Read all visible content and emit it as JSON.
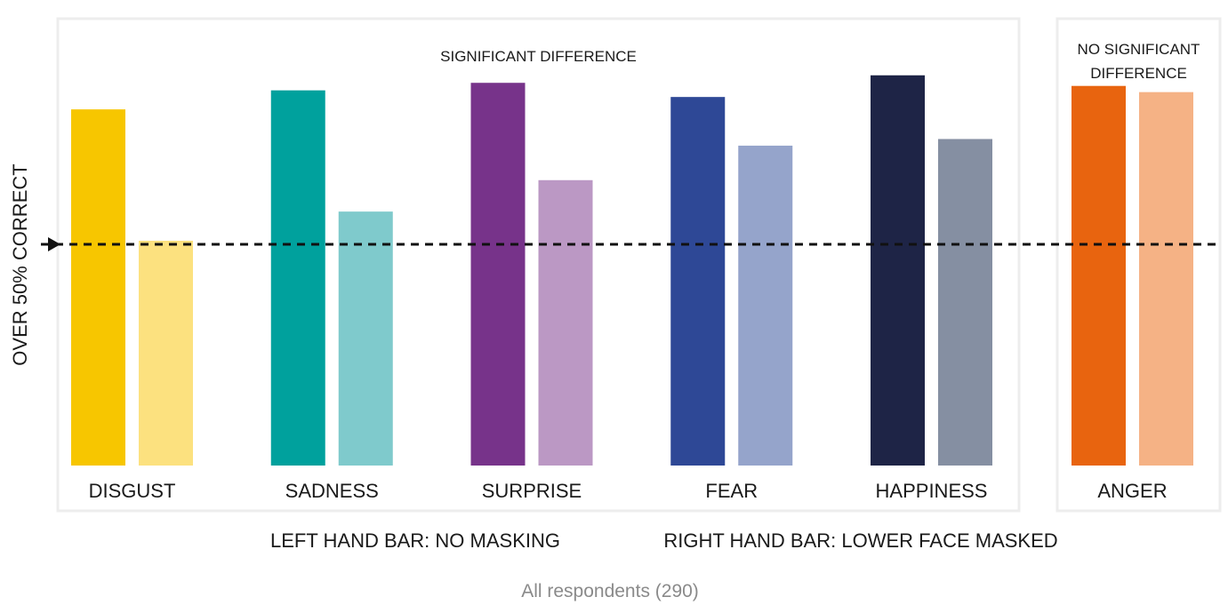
{
  "chart_data": {
    "type": "bar",
    "ylabel": "OVER 50% CORRECT",
    "threshold": 0.5,
    "ylim": [
      0,
      1
    ],
    "legend": {
      "left": "LEFT HAND BAR: NO MASKING",
      "right": "RIGHT HAND BAR: LOWER FACE MASKED"
    },
    "footnote": "All respondents (290)",
    "series": [
      {
        "name": "No masking"
      },
      {
        "name": "Lower face masked"
      }
    ],
    "groups": [
      {
        "title_lines": [
          "SIGNIFICANT DIFFERENCE"
        ],
        "categories": [
          {
            "label": "DISGUST",
            "values": [
              0.805,
              0.508
            ],
            "colors": [
              "#F7C600",
              "#FCE17F"
            ]
          },
          {
            "label": "SADNESS",
            "values": [
              0.848,
              0.574
            ],
            "colors": [
              "#00A19D",
              "#7FCACC"
            ]
          },
          {
            "label": "SURPRISE",
            "values": [
              0.865,
              0.645
            ],
            "colors": [
              "#77338A",
              "#BB98C4"
            ]
          },
          {
            "label": "FEAR",
            "values": [
              0.833,
              0.723
            ],
            "colors": [
              "#2E4896",
              "#95A4CB"
            ]
          },
          {
            "label": "HAPPINESS",
            "values": [
              0.882,
              0.738
            ],
            "colors": [
              "#1E2446",
              "#858FA2"
            ]
          }
        ]
      },
      {
        "title_lines": [
          "NO SIGNIFICANT",
          "DIFFERENCE"
        ],
        "categories": [
          {
            "label": "ANGER",
            "values": [
              0.858,
              0.844
            ],
            "colors": [
              "#E8640F",
              "#F5B285"
            ]
          }
        ]
      }
    ]
  }
}
